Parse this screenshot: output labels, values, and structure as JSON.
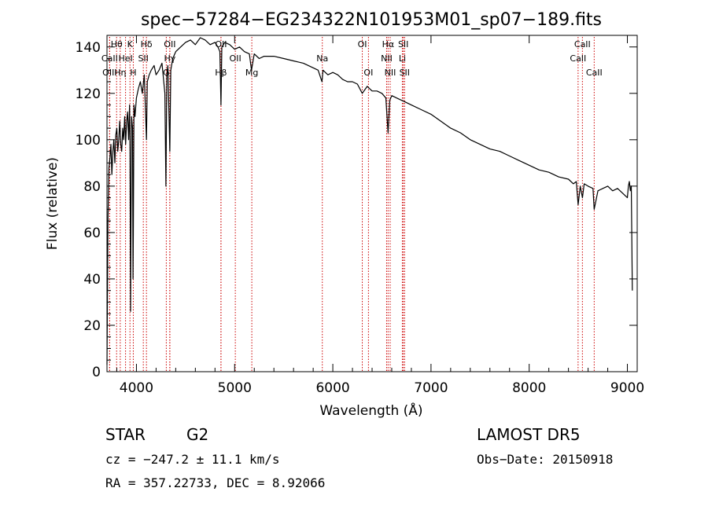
{
  "chart_data": {
    "type": "line",
    "title": "spec−57284−EG234322N101953M01_sp07−189.fits",
    "xlabel": "Wavelength (Å)",
    "ylabel": "Flux (relative)",
    "xlim": [
      3700,
      9100
    ],
    "ylim": [
      0,
      145
    ],
    "xticks": [
      4000,
      5000,
      6000,
      7000,
      8000,
      9000
    ],
    "yticks": [
      0,
      20,
      40,
      60,
      80,
      100,
      120,
      140
    ],
    "xtick_labels": [
      "4000",
      "5000",
      "6000",
      "7000",
      "8000",
      "9000"
    ],
    "ytick_labels": [
      "0",
      "20",
      "40",
      "60",
      "80",
      "100",
      "120",
      "140"
    ],
    "series": [
      {
        "color": "#000000",
        "x": [
          3700,
          3710,
          3720,
          3730,
          3740,
          3750,
          3760,
          3770,
          3780,
          3790,
          3800,
          3810,
          3820,
          3830,
          3840,
          3850,
          3860,
          3870,
          3880,
          3890,
          3900,
          3910,
          3920,
          3930,
          3935,
          3940,
          3950,
          3960,
          3965,
          3968,
          3975,
          3985,
          4000,
          4020,
          4040,
          4060,
          4080,
          4102,
          4110,
          4130,
          4150,
          4180,
          4200,
          4230,
          4260,
          4290,
          4300,
          4310,
          4320,
          4340,
          4350,
          4370,
          4400,
          4450,
          4500,
          4550,
          4600,
          4650,
          4700,
          4750,
          4800,
          4830,
          4850,
          4861,
          4870,
          4900,
          4950,
          5000,
          5050,
          5100,
          5150,
          5172,
          5200,
          5250,
          5300,
          5400,
          5500,
          5600,
          5700,
          5800,
          5850,
          5890,
          5900,
          5950,
          6000,
          6050,
          6100,
          6150,
          6200,
          6250,
          6300,
          6350,
          6400,
          6450,
          6500,
          6540,
          6563,
          6580,
          6600,
          6650,
          6700,
          6750,
          6800,
          6900,
          7000,
          7100,
          7200,
          7300,
          7400,
          7500,
          7600,
          7700,
          7800,
          7900,
          8000,
          8100,
          8200,
          8300,
          8400,
          8450,
          8480,
          8498,
          8520,
          8542,
          8560,
          8600,
          8650,
          8662,
          8700,
          8750,
          8800,
          8850,
          8900,
          8950,
          9000,
          9010,
          9020,
          9030,
          9040,
          9050
        ],
        "y": [
          3,
          65,
          88,
          92,
          98,
          85,
          95,
          100,
          90,
          102,
          105,
          95,
          100,
          108,
          98,
          95,
          105,
          100,
          110,
          98,
          108,
          112,
          100,
          115,
          95,
          26,
          110,
          105,
          40,
          60,
          115,
          110,
          118,
          122,
          125,
          120,
          128,
          100,
          125,
          128,
          130,
          132,
          128,
          130,
          133,
          120,
          80,
          128,
          132,
          95,
          130,
          135,
          138,
          140,
          142,
          143,
          141,
          144,
          143,
          141,
          142,
          140,
          138,
          115,
          140,
          142,
          141,
          139,
          140,
          138,
          137,
          130,
          137,
          135,
          136,
          136,
          135,
          134,
          133,
          131,
          130,
          125,
          130,
          128,
          129,
          128,
          126,
          125,
          125,
          124,
          120,
          123,
          121,
          121,
          120,
          118,
          103,
          117,
          119,
          118,
          117,
          116,
          115,
          113,
          111,
          108,
          105,
          103,
          100,
          98,
          96,
          95,
          93,
          91,
          89,
          87,
          86,
          84,
          83,
          81,
          82,
          72,
          80,
          75,
          81,
          80,
          79,
          70,
          78,
          79,
          80,
          78,
          79,
          77,
          75,
          80,
          82,
          78,
          80,
          35
        ]
      }
    ],
    "spectral_lines": [
      {
        "label": "Hθ",
        "x": 3798,
        "row": 0
      },
      {
        "label": "K",
        "x": 3934,
        "row": 0
      },
      {
        "label": "Hδ",
        "x": 4102,
        "row": 0
      },
      {
        "label": "OII",
        "x": 4340,
        "row": 0
      },
      {
        "label": "OII",
        "x": 4861,
        "row": 0
      },
      {
        "label": "OI",
        "x": 6300,
        "row": 0
      },
      {
        "label": "Hα",
        "x": 6563,
        "row": 0
      },
      {
        "label": "SII",
        "x": 6718,
        "row": 0
      },
      {
        "label": "CaII",
        "x": 8542,
        "row": 0
      },
      {
        "label": "CaII",
        "x": 3727,
        "row": 1
      },
      {
        "label": "HeI",
        "x": 3889,
        "row": 1
      },
      {
        "label": "SII",
        "x": 4070,
        "row": 1
      },
      {
        "label": "Hγ",
        "x": 4340,
        "row": 1
      },
      {
        "label": "OII",
        "x": 5007,
        "row": 1
      },
      {
        "label": "Na",
        "x": 5893,
        "row": 1
      },
      {
        "label": "NII",
        "x": 6548,
        "row": 1
      },
      {
        "label": "Li",
        "x": 6708,
        "row": 1
      },
      {
        "label": "CaII",
        "x": 8498,
        "row": 1
      },
      {
        "label": "OIII",
        "x": 3727,
        "row": 2
      },
      {
        "label": "Hη",
        "x": 3835,
        "row": 2
      },
      {
        "label": "H",
        "x": 3968,
        "row": 2
      },
      {
        "label": "G",
        "x": 4304,
        "row": 2
      },
      {
        "label": "Hβ",
        "x": 4861,
        "row": 2
      },
      {
        "label": "Mg",
        "x": 5175,
        "row": 2
      },
      {
        "label": "OI",
        "x": 6363,
        "row": 2
      },
      {
        "label": "NII",
        "x": 6584,
        "row": 2
      },
      {
        "label": "SII",
        "x": 6731,
        "row": 2
      },
      {
        "label": "CaII",
        "x": 8662,
        "row": 2
      }
    ],
    "line_marker_color": "#cc0000"
  },
  "info": {
    "object_type": "STAR",
    "subclass": "G2",
    "survey": "LAMOST DR5",
    "cz": "cz = −247.2 ± 11.1 km/s",
    "obs_date": "Obs−Date: 20150918",
    "radec": "RA = 357.22733, DEC =   8.92066"
  }
}
